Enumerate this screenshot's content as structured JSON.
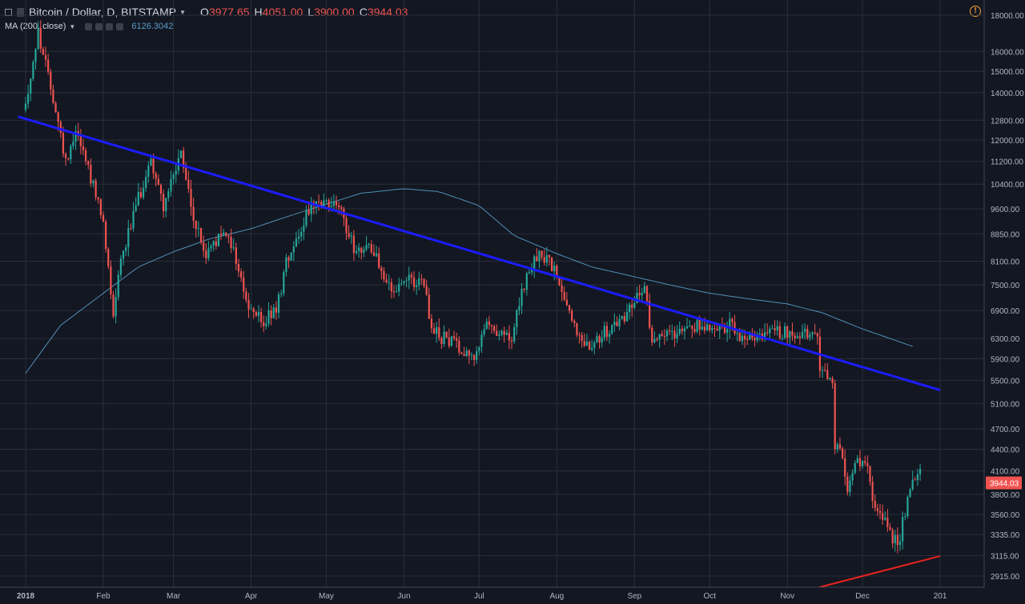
{
  "legend": {
    "symbol": "Bitcoin / Dollar, D, BITSTAMP",
    "ohlc": [
      {
        "key": "O",
        "value": "3977.65"
      },
      {
        "key": "H",
        "value": "4051.00"
      },
      {
        "key": "L",
        "value": "3900.00"
      },
      {
        "key": "C",
        "value": "3944.03"
      }
    ],
    "indicator": "MA (200, close)",
    "indicator_value": "6126.3042"
  },
  "colors": {
    "background": "#131722",
    "grid": "#2a2e39",
    "up": "#26a69a",
    "down": "#ef5350",
    "ma": "#4f8fb5",
    "trend_blue": "#1c1cff",
    "trend_red": "#e8231e",
    "last_price_bg": "#ef5350"
  },
  "icons": {
    "alert": "alert-clock-icon",
    "indicator_buttons": [
      "eye-icon",
      "gear-icon",
      "plus-icon",
      "close-icon"
    ]
  },
  "chart_data": {
    "type": "candlestick",
    "y_axis": {
      "scale": "log",
      "range": [
        2780,
        19000
      ],
      "ticks": [
        "18000.00",
        "16000.00",
        "15000.00",
        "14000.00",
        "12800.00",
        "12000.00",
        "11200.00",
        "10400.00",
        "9600.00",
        "8850.00",
        "8100.00",
        "7500.00",
        "6900.00",
        "6300.00",
        "5900.00",
        "5500.00",
        "5100.00",
        "4700.00",
        "4400.00",
        "4100.00",
        "3800.00",
        "3560.00",
        "3335.00",
        "3115.00",
        "2915.00"
      ]
    },
    "x_axis": {
      "labels": [
        "2018",
        "Feb",
        "Mar",
        "Apr",
        "May",
        "Jun",
        "Jul",
        "Aug",
        "Sep",
        "Oct",
        "Nov",
        "Dec",
        "201"
      ]
    },
    "last_price": "3944.03",
    "close_path": [
      [
        "2018-01-01",
        13500
      ],
      [
        "2018-01-06",
        17000
      ],
      [
        "2018-01-12",
        13800
      ],
      [
        "2018-01-17",
        11200
      ],
      [
        "2018-01-21",
        12500
      ],
      [
        "2018-01-26",
        11000
      ],
      [
        "2018-02-01",
        9100
      ],
      [
        "2018-02-05",
        6900
      ],
      [
        "2018-02-08",
        8200
      ],
      [
        "2018-02-15",
        9900
      ],
      [
        "2018-02-20",
        11300
      ],
      [
        "2018-02-25",
        9700
      ],
      [
        "2018-03-04",
        11400
      ],
      [
        "2018-03-09",
        9300
      ],
      [
        "2018-03-14",
        8200
      ],
      [
        "2018-03-17",
        8600
      ],
      [
        "2018-03-23",
        8900
      ],
      [
        "2018-03-31",
        6950
      ],
      [
        "2018-04-06",
        6650
      ],
      [
        "2018-04-11",
        6900
      ],
      [
        "2018-04-15",
        8100
      ],
      [
        "2018-04-24",
        9600
      ],
      [
        "2018-05-05",
        9800
      ],
      [
        "2018-05-12",
        8500
      ],
      [
        "2018-05-20",
        8400
      ],
      [
        "2018-05-27",
        7300
      ],
      [
        "2018-06-04",
        7600
      ],
      [
        "2018-06-09",
        7500
      ],
      [
        "2018-06-12",
        6450
      ],
      [
        "2018-06-23",
        6150
      ],
      [
        "2018-06-29",
        5950
      ],
      [
        "2018-07-04",
        6550
      ],
      [
        "2018-07-10",
        6450
      ],
      [
        "2018-07-14",
        6200
      ],
      [
        "2018-07-18",
        7350
      ],
      [
        "2018-07-24",
        8200
      ],
      [
        "2018-07-28",
        8200
      ],
      [
        "2018-08-03",
        7400
      ],
      [
        "2018-08-10",
        6300
      ],
      [
        "2018-08-14",
        6200
      ],
      [
        "2018-08-21",
        6450
      ],
      [
        "2018-08-26",
        6650
      ],
      [
        "2018-09-02",
        7250
      ],
      [
        "2018-09-05",
        7300
      ],
      [
        "2018-09-08",
        6350
      ],
      [
        "2018-09-16",
        6400
      ],
      [
        "2018-09-21",
        6600
      ],
      [
        "2018-10-01",
        6560
      ],
      [
        "2018-10-10",
        6550
      ],
      [
        "2018-10-13",
        6250
      ],
      [
        "2018-10-23",
        6400
      ],
      [
        "2018-11-06",
        6450
      ],
      [
        "2018-11-13",
        6300
      ],
      [
        "2018-11-14",
        5650
      ],
      [
        "2018-11-19",
        5500
      ],
      [
        "2018-11-20",
        4500
      ],
      [
        "2018-11-23",
        4300
      ],
      [
        "2018-11-25",
        3800
      ],
      [
        "2018-11-28",
        4200
      ],
      [
        "2018-12-03",
        4100
      ],
      [
        "2018-12-06",
        3600
      ],
      [
        "2018-12-10",
        3500
      ],
      [
        "2018-12-15",
        3200
      ],
      [
        "2018-12-18",
        3600
      ],
      [
        "2018-12-21",
        3950
      ],
      [
        "2018-12-24",
        4050
      ]
    ],
    "ma_200": [
      [
        "2018-01-01",
        5630
      ],
      [
        "2018-01-15",
        6580
      ],
      [
        "2018-02-01",
        7300
      ],
      [
        "2018-02-15",
        7950
      ],
      [
        "2018-03-01",
        8350
      ],
      [
        "2018-03-15",
        8700
      ],
      [
        "2018-04-01",
        9000
      ],
      [
        "2018-04-15",
        9350
      ],
      [
        "2018-05-01",
        9750
      ],
      [
        "2018-05-15",
        10100
      ],
      [
        "2018-06-01",
        10250
      ],
      [
        "2018-06-15",
        10150
      ],
      [
        "2018-07-01",
        9700
      ],
      [
        "2018-07-15",
        8800
      ],
      [
        "2018-08-01",
        8300
      ],
      [
        "2018-08-15",
        7950
      ],
      [
        "2018-09-01",
        7700
      ],
      [
        "2018-09-15",
        7500
      ],
      [
        "2018-10-01",
        7300
      ],
      [
        "2018-10-15",
        7180
      ],
      [
        "2018-11-01",
        7050
      ],
      [
        "2018-11-15",
        6850
      ],
      [
        "2018-12-01",
        6500
      ],
      [
        "2018-12-22",
        6126.3042
      ]
    ],
    "trendlines": [
      {
        "color": "trend_blue",
        "from": [
          "2017-12-29",
          12950
        ],
        "to": [
          "2019-01-01",
          5330
        ]
      },
      {
        "color": "trend_red",
        "from": [
          "2018-11-12",
          2800
        ],
        "to": [
          "2019-01-01",
          3110
        ]
      }
    ],
    "candle_range": {
      "start": "2018-01-01",
      "end": "2018-12-24"
    }
  }
}
